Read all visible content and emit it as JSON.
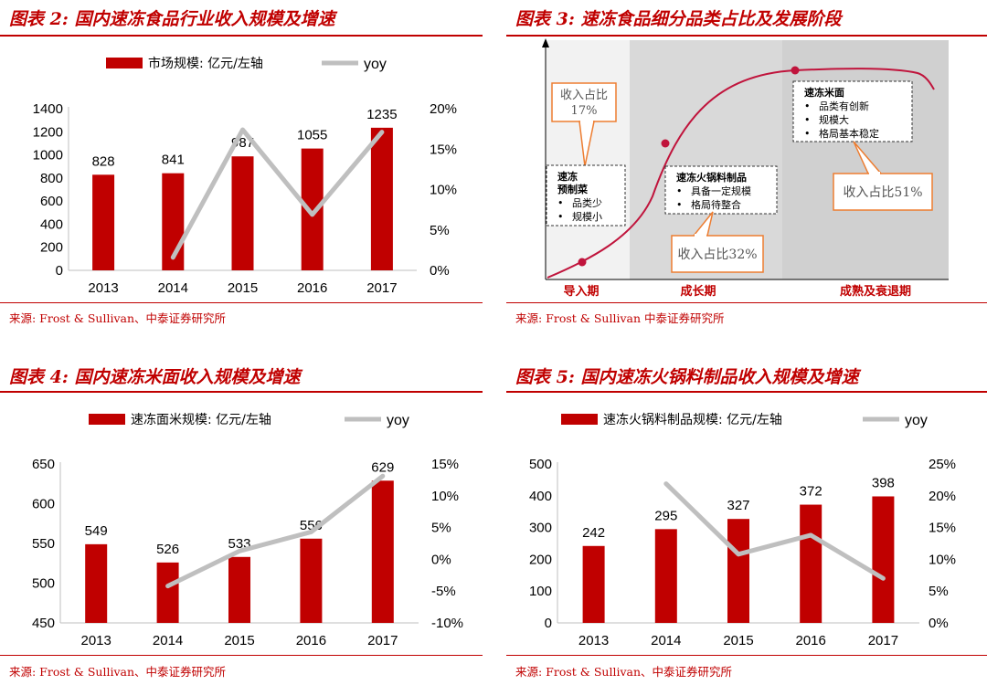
{
  "chart_data": [
    {
      "id": "c2",
      "type": "bar",
      "title": "图表 2: 国内速冻食品行业收入规模及增速",
      "source": "来源: Frost & Sullivan、中泰证券研究所",
      "categories": [
        "2013",
        "2014",
        "2015",
        "2016",
        "2017"
      ],
      "series": [
        {
          "name": "市场规模: 亿元/左轴",
          "kind": "bar",
          "axis": "left",
          "values": [
            828,
            841,
            987,
            1055,
            1235
          ],
          "labels": [
            "828",
            "841",
            "987",
            "1055",
            "1235"
          ]
        },
        {
          "name": "yoy",
          "kind": "line",
          "axis": "right",
          "values": [
            null,
            1.6,
            17.4,
            6.9,
            17.1
          ]
        }
      ],
      "ylim": [
        0,
        1400
      ],
      "yticks": [
        0,
        200,
        400,
        600,
        800,
        1000,
        1200,
        1400
      ],
      "y2lim": [
        0,
        20
      ],
      "y2ticks": [
        "0%",
        "5%",
        "10%",
        "15%",
        "20%"
      ],
      "legend": "top-center",
      "grid": false,
      "colors": {
        "bar": "#c00000",
        "line": "#bfbfbf"
      }
    },
    {
      "id": "c4",
      "type": "bar",
      "title": "图表 4: 国内速冻米面收入规模及增速",
      "source": "来源: Frost & Sullivan、中泰证券研究所",
      "categories": [
        "2013",
        "2014",
        "2015",
        "2016",
        "2017"
      ],
      "series": [
        {
          "name": "速冻面米规模: 亿元/左轴",
          "kind": "bar",
          "axis": "left",
          "values": [
            549,
            526,
            533,
            556,
            629
          ],
          "labels": [
            "549",
            "526",
            "533",
            "556",
            "629"
          ]
        },
        {
          "name": "yoy",
          "kind": "line",
          "axis": "right",
          "values": [
            null,
            -4.2,
            1.3,
            4.3,
            13.1
          ]
        }
      ],
      "ylim": [
        450,
        650
      ],
      "yticks": [
        450,
        500,
        550,
        600,
        650
      ],
      "y2lim": [
        -10,
        15
      ],
      "y2ticks": [
        "-10%",
        "-5%",
        "0%",
        "5%",
        "10%",
        "15%"
      ],
      "legend": "top-center",
      "grid": false,
      "colors": {
        "bar": "#c00000",
        "line": "#bfbfbf"
      }
    },
    {
      "id": "c5",
      "type": "bar",
      "title": "图表 5: 国内速冻火锅料制品收入规模及增速",
      "source": "来源: Frost & Sullivan、中泰证券研究所",
      "categories": [
        "2013",
        "2014",
        "2015",
        "2016",
        "2017"
      ],
      "series": [
        {
          "name": "速冻火锅料制品规模: 亿元/左轴",
          "kind": "bar",
          "axis": "left",
          "values": [
            242,
            295,
            327,
            372,
            398
          ],
          "labels": [
            "242",
            "295",
            "327",
            "372",
            "398"
          ]
        },
        {
          "name": "yoy",
          "kind": "line",
          "axis": "right",
          "values": [
            null,
            21.9,
            10.8,
            13.8,
            7.0
          ]
        }
      ],
      "ylim": [
        0,
        500
      ],
      "yticks": [
        0,
        100,
        200,
        300,
        400,
        500
      ],
      "y2lim": [
        0,
        25
      ],
      "y2ticks": [
        "0%",
        "5%",
        "10%",
        "15%",
        "20%",
        "25%"
      ],
      "legend": "top-center",
      "grid": false,
      "colors": {
        "bar": "#c00000",
        "line": "#bfbfbf"
      }
    }
  ],
  "lifecycle": {
    "title": "图表 3: 速冻食品细分品类占比及发展阶段",
    "source": "来源: Frost & Sullivan 中泰证券研究所",
    "stages": [
      "导入期",
      "成长期",
      "成熟及衰退期"
    ],
    "box1": {
      "title1": "速冻",
      "title2": "预制菜",
      "items": [
        "品类少",
        "规模小"
      ]
    },
    "box2": {
      "title": "速冻火锅料制品",
      "items": [
        "具备一定规模",
        "格局待整合"
      ]
    },
    "box3": {
      "title": "速冻米面",
      "items": [
        "品类有创新",
        "规模大",
        "格局基本稳定"
      ]
    },
    "callout1": {
      "line1": "收入占比",
      "line2": "17%"
    },
    "callout2": {
      "text": "收入占比32%"
    },
    "callout3": {
      "text": "收入占比51%"
    },
    "colors": {
      "curve": "#c0143c",
      "shade": "#d9d9d9",
      "callout": "#ed7d31"
    }
  }
}
